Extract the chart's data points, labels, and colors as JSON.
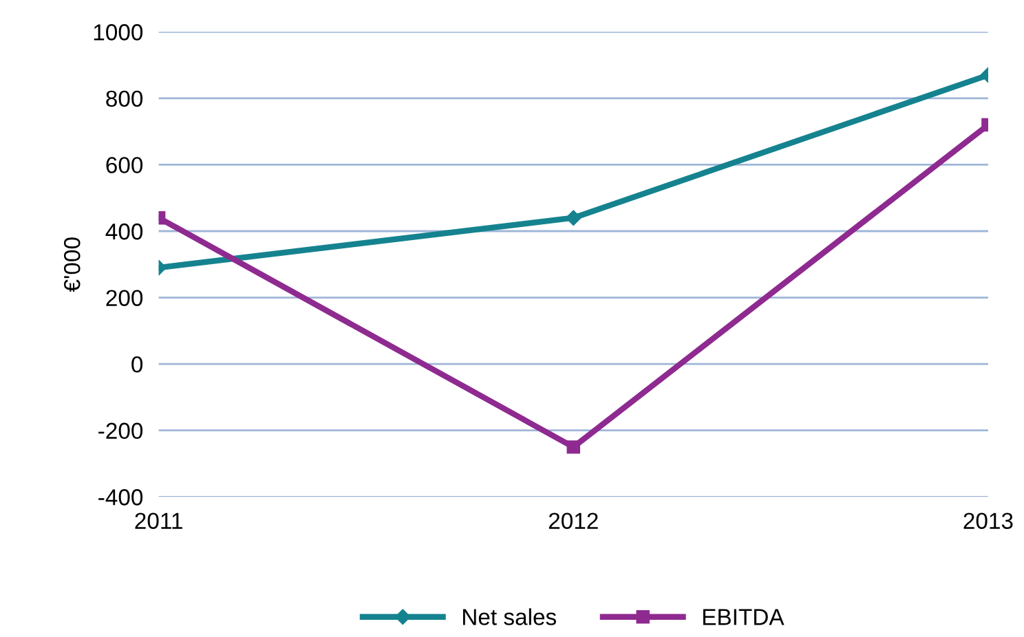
{
  "chart_data": {
    "type": "line",
    "ylabel": "€'000",
    "x": [
      2011,
      2012,
      2013
    ],
    "xlim": [
      2011,
      2013
    ],
    "xticks": [
      2011,
      2012,
      2013
    ],
    "ylim": [
      -400,
      1000
    ],
    "yticks": [
      -400,
      -200,
      0,
      200,
      400,
      600,
      800,
      1000
    ],
    "grid": "y",
    "legend": "bottom",
    "line_style": "solid",
    "series": [
      {
        "name": "Net sales",
        "color": "#15838f",
        "marker": "diamond",
        "values": [
          290,
          440,
          870
        ]
      },
      {
        "name": "EBITDA",
        "color": "#8e2a90",
        "marker": "square",
        "values": [
          440,
          -250,
          720
        ]
      }
    ]
  }
}
